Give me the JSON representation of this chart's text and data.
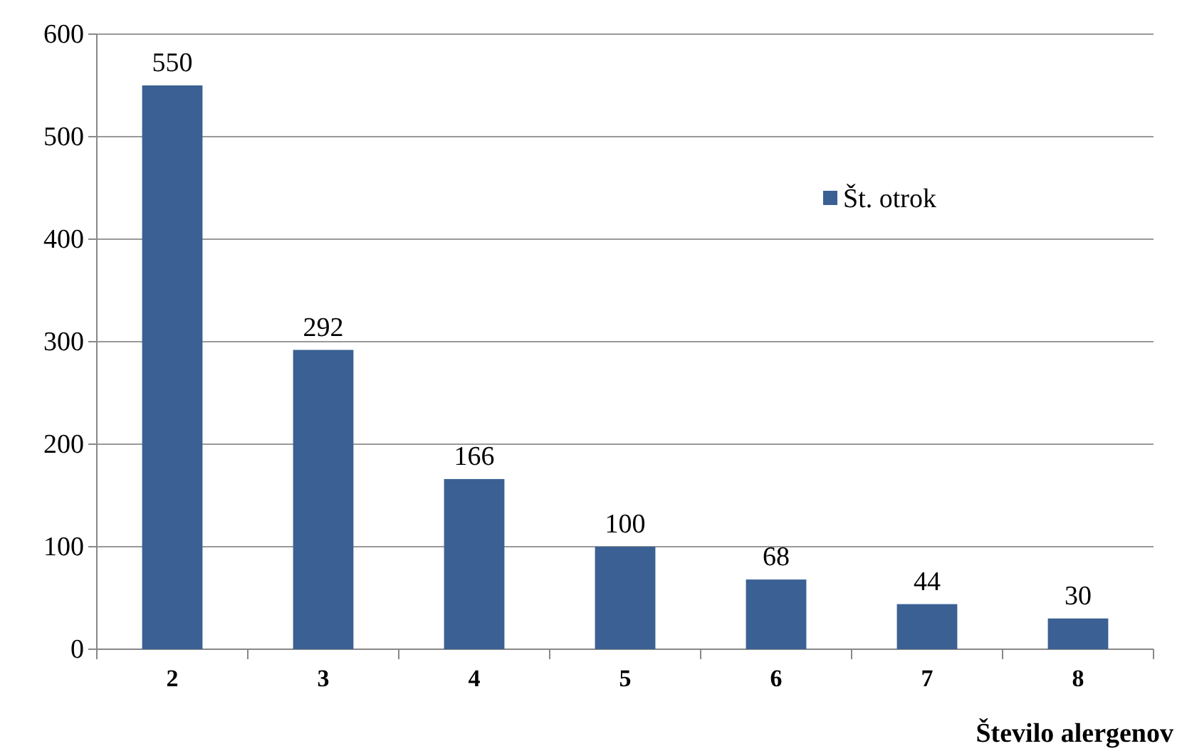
{
  "chart_data": {
    "type": "bar",
    "xlabel": "Število alergenov",
    "categories": [
      "2",
      "3",
      "4",
      "5",
      "6",
      "7",
      "8"
    ],
    "series": [
      {
        "name": "Št. otrok",
        "color": "#3b6093",
        "values": [
          550,
          292,
          166,
          100,
          68,
          44,
          30
        ]
      }
    ],
    "ylim": [
      0,
      600
    ],
    "yticks": [
      0,
      100,
      200,
      300,
      400,
      500,
      600
    ],
    "grid": "y",
    "legend": "right",
    "data_labels": true
  }
}
